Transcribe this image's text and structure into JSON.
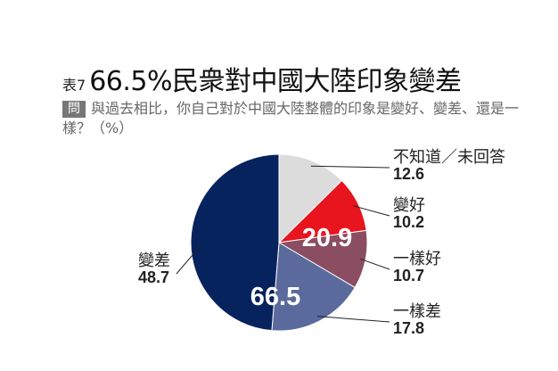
{
  "header": {
    "table_no": "表7",
    "title": "66.5%民衆對中國大陸印象變差",
    "question_badge": "問",
    "question": "與過去相比，你自己對於中國大陸整體的印象是變好、變差、還是一樣？（%）"
  },
  "chart_data": {
    "type": "pie",
    "title": "66.5%民衆對中國大陸印象變差",
    "slices": [
      {
        "label": "不知道／未回答",
        "value": 12.6,
        "color": "#dcdcdc"
      },
      {
        "label": "變好",
        "value": 10.2,
        "color": "#e8141e"
      },
      {
        "label": "一樣好",
        "value": 10.7,
        "color": "#8a4d61"
      },
      {
        "label": "一樣差",
        "value": 17.8,
        "color": "#5a6a9c"
      },
      {
        "label": "變差",
        "value": 48.7,
        "color": "#07235e"
      }
    ],
    "group_totals": [
      {
        "label": "20.9",
        "value": 20.9
      },
      {
        "label": "66.5",
        "value": 66.5
      }
    ]
  }
}
